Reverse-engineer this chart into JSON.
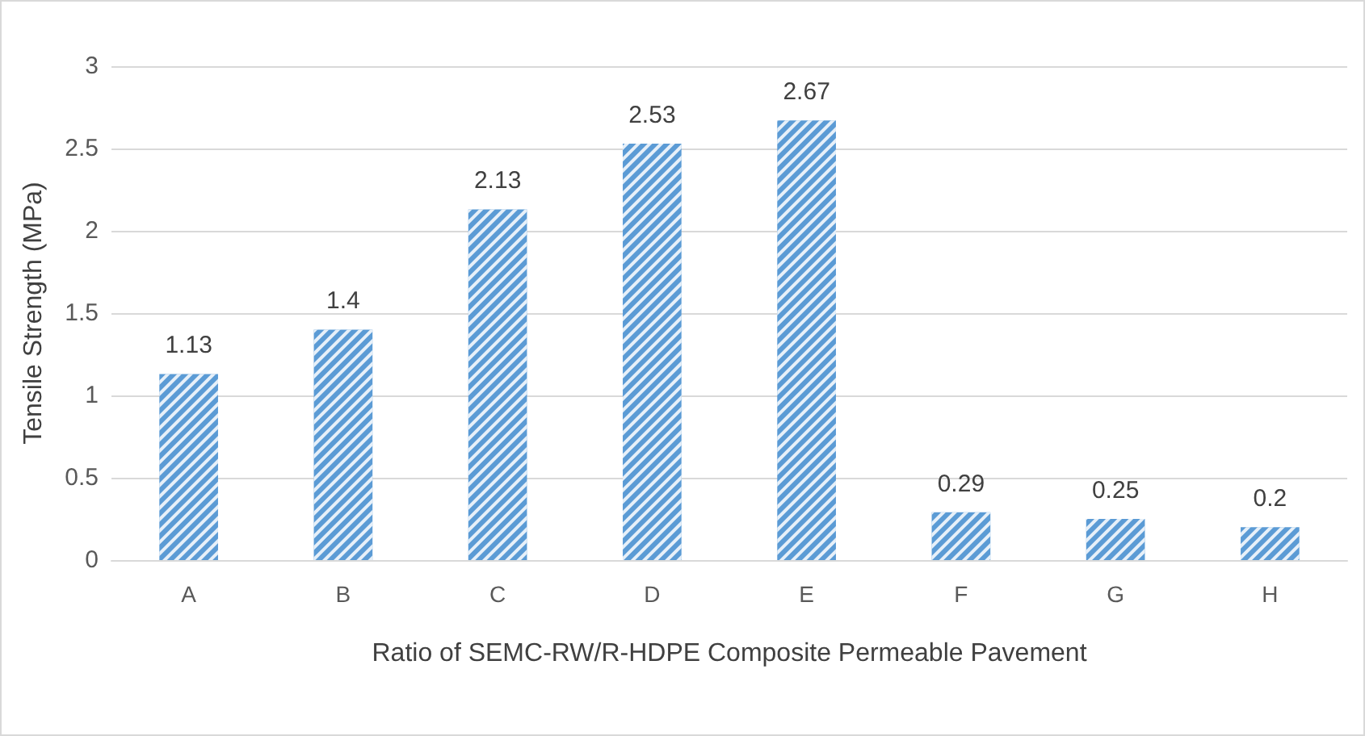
{
  "chart_data": {
    "type": "bar",
    "xlabel": "Ratio of SEMC-RW/R-HDPE Composite Permeable Pavement",
    "ylabel": "Tensile Strength (MPa)",
    "categories": [
      "A",
      "B",
      "C",
      "D",
      "E",
      "F",
      "G",
      "H"
    ],
    "values": [
      1.13,
      1.4,
      2.13,
      2.53,
      2.67,
      0.29,
      0.25,
      0.2
    ],
    "color": "#5b9bd5",
    "ylim": [
      0,
      3
    ],
    "yticks": [
      0,
      0.5,
      1,
      1.5,
      2,
      2.5,
      3
    ],
    "grid": "y",
    "data_labels": true
  }
}
